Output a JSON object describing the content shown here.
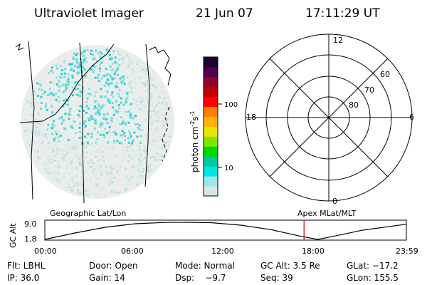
{
  "header": {
    "instrument": "Ultraviolet Imager",
    "date": "21 Jun 07",
    "time": "17:11:29 UT"
  },
  "colorbar": {
    "unit": "photon cm",
    "unit_exp1": "-2",
    "unit_mid": "s",
    "unit_exp2": "-1",
    "ticks": [
      "100",
      "10"
    ],
    "colors": [
      "#d6e6e6",
      "#9ee6e6",
      "#00e6e6",
      "#00c8a0",
      "#00d800",
      "#7ee600",
      "#e6e600",
      "#ffb400",
      "#ff8000",
      "#ff0000",
      "#c00000",
      "#900030",
      "#500050",
      "#1c0030"
    ]
  },
  "polar": {
    "mlt_labels": [
      "12",
      "18",
      "6",
      "0"
    ],
    "lat_labels": [
      "60",
      "70",
      "80"
    ]
  },
  "timeline": {
    "left_label": "Geographic Lat/Lon",
    "right_label": "Apex  MLat/MLT",
    "ylabel": "GC Alt",
    "y_ticks": [
      "9.0",
      "1.8"
    ],
    "x_ticks": [
      "00:00",
      "06:00",
      "12:00",
      "18:00",
      "23:59"
    ],
    "current_time_hours": 17.19,
    "marker_color": "#c00000"
  },
  "status": {
    "row1": [
      "Flt: LBHL",
      "Door: Open",
      "Mode: Normal",
      "GC Alt: 3.5 Re",
      "GLat: −17.2"
    ],
    "row2": [
      "IP: 36.0",
      "Gain: 14",
      "Dsp:    −9.7",
      "Seq: 39",
      "GLon: 155.5"
    ]
  },
  "chart_data": {
    "type": "line",
    "title": "",
    "xlabel": "",
    "ylabel": "GC Alt",
    "x": [
      0,
      2,
      4,
      6,
      8,
      9.5,
      11,
      13,
      15,
      17,
      18.1,
      19,
      21,
      23.98
    ],
    "values": [
      1.8,
      4.5,
      6.9,
      8.4,
      8.95,
      9.0,
      8.85,
      7.8,
      5.9,
      3.1,
      1.8,
      2.9,
      5.6,
      8.2
    ],
    "xlim": [
      0,
      23.98
    ],
    "ylim": [
      1.8,
      9.0
    ]
  }
}
